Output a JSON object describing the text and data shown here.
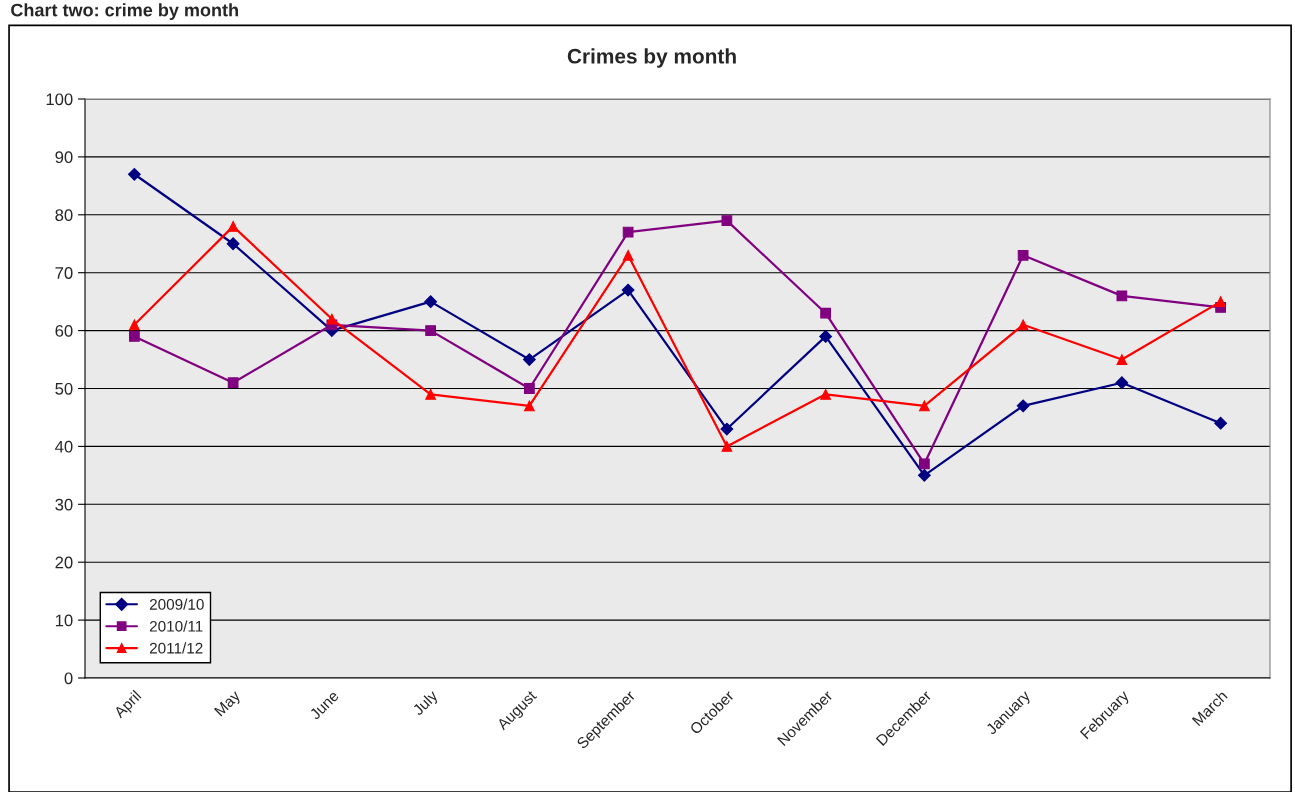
{
  "chart_data": {
    "type": "line",
    "title": "Crimes by month",
    "annotations": [
      "Chart two: crime by month"
    ],
    "categories": [
      "April",
      "May",
      "June",
      "July",
      "August",
      "September",
      "October",
      "November",
      "December",
      "January",
      "February",
      "March"
    ],
    "series": [
      {
        "name": "2009/10",
        "color": "#000080",
        "marker": "diamond",
        "values": [
          87,
          75,
          60,
          65,
          55,
          67,
          43,
          59,
          35,
          47,
          51,
          44
        ]
      },
      {
        "name": "2010/11",
        "color": "#800080",
        "marker": "square",
        "values": [
          59,
          51,
          61,
          60,
          50,
          77,
          79,
          63,
          37,
          73,
          66,
          64
        ]
      },
      {
        "name": "2011/12",
        "color": "#ff0000",
        "marker": "triangle",
        "values": [
          61,
          78,
          62,
          49,
          47,
          73,
          40,
          49,
          47,
          61,
          55,
          65
        ]
      }
    ],
    "ylim": [
      0,
      100
    ],
    "yticks": [
      0,
      10,
      20,
      30,
      40,
      50,
      60,
      70,
      80,
      90,
      100
    ],
    "grid": "y",
    "legend": "bottom left",
    "line_style": "solid"
  }
}
